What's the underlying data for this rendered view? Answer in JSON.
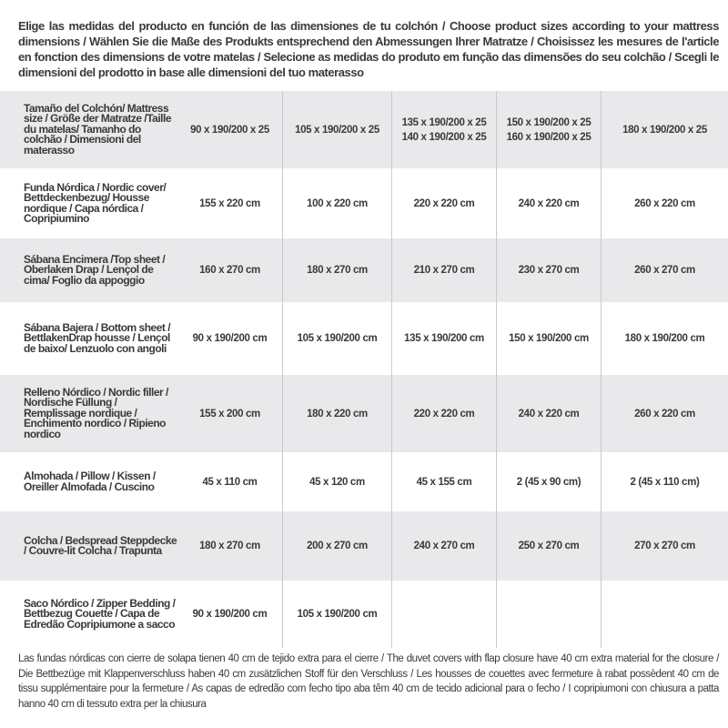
{
  "intro": "Elige las medidas del producto en función de las dimensiones de tu colchón / Choose product sizes according to your mattress dimensions / Wählen Sie die Maße des Produkts entsprechend den Abmessungen Ihrer Matratze / Choisissez les mesures de l'article en fonction des dimensions de votre matelas / Selecione as medidas do produto em função das dimensões do seu colchão / Scegli le dimensioni del prodotto in base alle dimensioni del tuo materasso",
  "table": {
    "header": {
      "label": "Tamaño del Colchón/ Mattress size / Größe der Matratze /Taille du matelas/ Tamanho do colchão / Dimensioni del materasso",
      "sizes": [
        "90 x 190/200 x 25",
        "105 x 190/200 x 25",
        "135 x 190/200 x 25\n140 x 190/200 x 25",
        "150 x 190/200 x 25\n160 x 190/200 x 25",
        "180 x 190/200 x 25"
      ]
    },
    "rows": [
      {
        "label": "Funda Nórdica /  Nordic cover/ Bettdeckenbezug/ Housse nordique  / Capa nórdica / Copripiumino",
        "values": [
          "155 x 220 cm",
          "100 x 220 cm",
          "220 x 220 cm",
          "240 x 220 cm",
          "260 x 220 cm"
        ]
      },
      {
        "label": "Sábana Encimera /Top sheet / Oberlaken Drap / Lençol de cima/ Foglio da appoggio",
        "values": [
          "160 x 270 cm",
          "180 x 270 cm",
          "210 x 270 cm",
          "230 x 270 cm",
          "260 x 270 cm"
        ]
      },
      {
        "label": "Sábana Bajera / Bottom sheet / BettlakenDrap housse / Lençol de baixo/ Lenzuolo con angoli",
        "values": [
          "90 x 190/200 cm",
          "105 x 190/200 cm",
          "135 x 190/200 cm",
          "150 x 190/200 cm",
          "180 x 190/200 cm"
        ]
      },
      {
        "label": "Relleno Nórdico / Nordic filler / Nordische Füllung / Remplissage nordique / Enchimento nordico / Ripieno nordico",
        "values": [
          "155 x 200 cm",
          "180 x 220 cm",
          "220 x 220 cm",
          "240 x 220 cm",
          "260 x 220 cm"
        ]
      },
      {
        "label": "Almohada  / Pillow / Kissen / Oreiller Almofada / Cuscino",
        "values": [
          "45 x 110 cm",
          "45 x 120 cm",
          "45 x 155 cm",
          "2 (45 x 90 cm)",
          "2 (45 x 110 cm)"
        ]
      },
      {
        "label": "Colcha / Bedspread Steppdecke / Couvre-lit Colcha / Trapunta",
        "values": [
          "180 x 270 cm",
          "200 x 270 cm",
          "240 x 270 cm",
          "250 x 270 cm",
          "270 x 270 cm"
        ]
      },
      {
        "label": "Saco Nórdico / Zipper Bedding / Bettbezug Couette  / Capa de Edredão Copripiumone a sacco",
        "values": [
          "90 x 190/200 cm",
          "105 x 190/200 cm",
          "",
          "",
          ""
        ]
      }
    ]
  },
  "note": "Las fundas nórdicas con cierre de solapa tienen 40 cm de tejido extra para el cierre  / The duvet covers with flap closure have 40 cm extra material for the closure / Die Bettbezüge mit Klappenverschluss haben 40 cm zusätzlichen Stoff für den Verschluss / Les housses de couettes avec fermeture à rabat possèdent 40 cm de tissu supplémentaire pour la fermeture / As capas de edredão com fecho tipo aba têm 40 cm de tecido adicional para o fecho / I copripiumoni con chiusura a patta hanno 40 cm di tessuto extra per la chiusura",
  "colors": {
    "row_band": "#e9e9eb",
    "text": "#3a3a3a",
    "divider": "#c9c9cb"
  }
}
